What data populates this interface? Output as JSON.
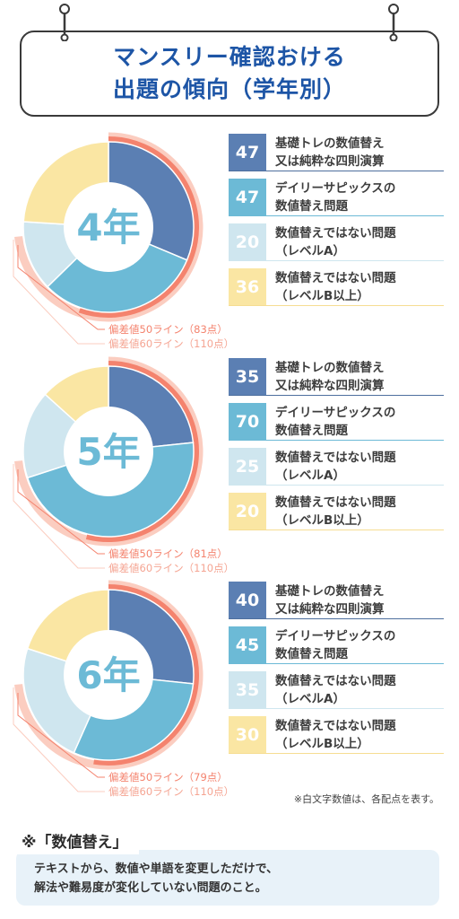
{
  "header": {
    "title_line1": "マンスリー確認おける",
    "title_line2": "出題の傾向（学年別）"
  },
  "colors": {
    "title": "#1d55a6",
    "cat1": "#5b7fb3",
    "cat2": "#6cbad6",
    "cat3": "#cfe6ef",
    "cat4": "#fae6a3",
    "line50": "#f4836e",
    "line60": "#fbcdc0"
  },
  "categories": [
    "基礎トレの数値替え又は純粋な四則演算",
    "デイリーサピックスの数値替え問題",
    "数値替えではない問題（レベルA）",
    "数値替えではない問題（レベルB以上）"
  ],
  "legend_labels": [
    [
      "基礎トレの数値替え",
      "又は純粋な四則演算"
    ],
    [
      "デイリーサピックスの",
      "数値替え問題"
    ],
    [
      "数値替えではない問題",
      "（レベルA）"
    ],
    [
      "数値替えではない問題",
      "（レベルB以上）"
    ]
  ],
  "chart_data": [
    {
      "type": "pie",
      "center_label": "4年",
      "categories": [
        "基礎トレの数値替え又は純粋な四則演算",
        "デイリーサピックスの数値替え問題",
        "数値替えではない問題（レベルA）",
        "数値替えではない問題（レベルB以上）"
      ],
      "values": [
        47,
        47,
        20,
        36
      ],
      "reference_lines": [
        {
          "label": "偏差値50ライン（83点）",
          "value": 83
        },
        {
          "label": "偏差値60ライン（110点）",
          "value": 110
        }
      ]
    },
    {
      "type": "pie",
      "center_label": "5年",
      "categories": [
        "基礎トレの数値替え又は純粋な四則演算",
        "デイリーサピックスの数値替え問題",
        "数値替えではない問題（レベルA）",
        "数値替えではない問題（レベルB以上）"
      ],
      "values": [
        35,
        70,
        25,
        20
      ],
      "reference_lines": [
        {
          "label": "偏差値50ライン（81点）",
          "value": 81
        },
        {
          "label": "偏差値60ライン（110点）",
          "value": 110
        }
      ]
    },
    {
      "type": "pie",
      "center_label": "6年",
      "categories": [
        "基礎トレの数値替え又は純粋な四則演算",
        "デイリーサピックスの数値替え問題",
        "数値替えではない問題（レベルA）",
        "数値替えではない問題（レベルB以上）"
      ],
      "values": [
        40,
        45,
        35,
        30
      ],
      "reference_lines": [
        {
          "label": "偏差値50ライン（79点）",
          "value": 79
        },
        {
          "label": "偏差値60ライン（110点）",
          "value": 110
        }
      ]
    }
  ],
  "note": "※白文字数値は、各配点を表す。",
  "definition": {
    "heading": "※「数値替え」",
    "line1": "テキストから、数値や単語を変更しただけで、",
    "line2": "解法や難易度が変化していない問題のこと。"
  }
}
